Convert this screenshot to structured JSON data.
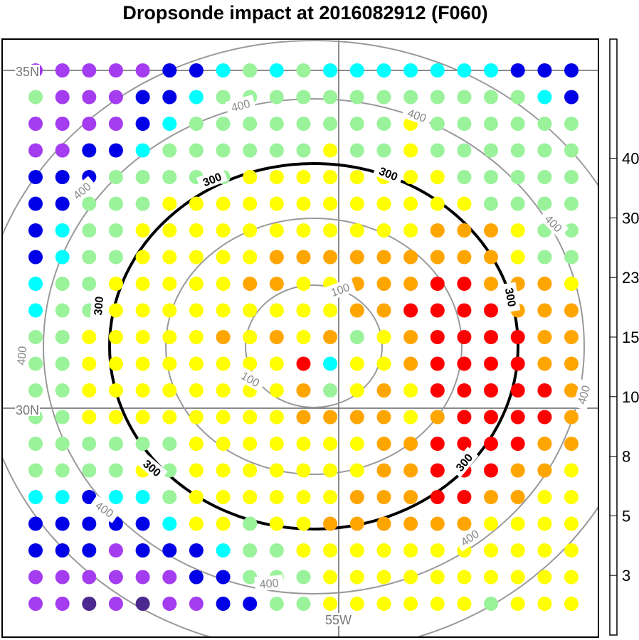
{
  "chart_data": {
    "type": "scatter",
    "title": "Dropsonde impact at 2016082912 (F060)",
    "xlabel": "",
    "ylabel": "",
    "grid_labels": {
      "lat_top": "35N",
      "lat_mid": "30N",
      "lon_mid": "55W"
    },
    "colorbar": {
      "tick_labels": [
        "3",
        "5",
        "8",
        "10",
        "15",
        "23",
        "30",
        "40"
      ],
      "colors": [
        "#4b2a8f",
        "#a43cf0",
        "#0000e6",
        "#00ffff",
        "#9af29a",
        "#ffff00",
        "#ffa500",
        "#ff0000",
        "#b40000",
        "#7c0000"
      ]
    },
    "contours": [
      {
        "level": 100,
        "label": "100",
        "style": "thin-gray"
      },
      {
        "level": 200,
        "label": "",
        "style": "thin-gray"
      },
      {
        "level": 300,
        "label": "300",
        "style": "thick-black"
      },
      {
        "level": 400,
        "label": "400",
        "style": "thin-gray"
      },
      {
        "level": 500,
        "label": "",
        "style": "thin-gray"
      }
    ],
    "grid": {
      "cols": 21,
      "rows": 21,
      "rows_codes": [
        "PPPPPBBCGCGCCCCCCCBBB",
        "GPPPBBCGGGGGGGGGGGGCB",
        "PPPPBCGGGGGGGGYGGGGGG",
        "PPBBCGGGGGGYGGYGGGGGG",
        "BBBGGGGGYYYYYYYYGGGGG",
        "BBGGGYYYYYYYYYYYYGGGG",
        "BCGGYYYYYYYYYYYOOOYGG",
        "BCGGYYYYYOOOOOOOOOYGG",
        "CGGYYYYYOOYYOOORROOOY",
        "CGGYYYYYYYYYOORRRROOO",
        "GGYYYYYOYOYOGYORRRROO",
        "GGYYYYYYYYRCYYORRRROO",
        "GGYYYYYYYYOGYOYRRRRRO",
        "GGYYYYYYYYOOOOYORRRRO",
        "GGGGGGYYYYYYYOORRRROO",
        "GGGGYGYYYYYYYOORRROOY",
        "CCBCCGYYYYYYOOORROOYY",
        "BBBBBCYYGYYOOOOOOYYYY",
        "BBBPBBBCGGYYYYYYYYYYY",
        "PPPPPPBBGGGYYYYYYYYYY",
        "PPDPDPPBBGGYYYYYYGYYY"
      ]
    }
  }
}
